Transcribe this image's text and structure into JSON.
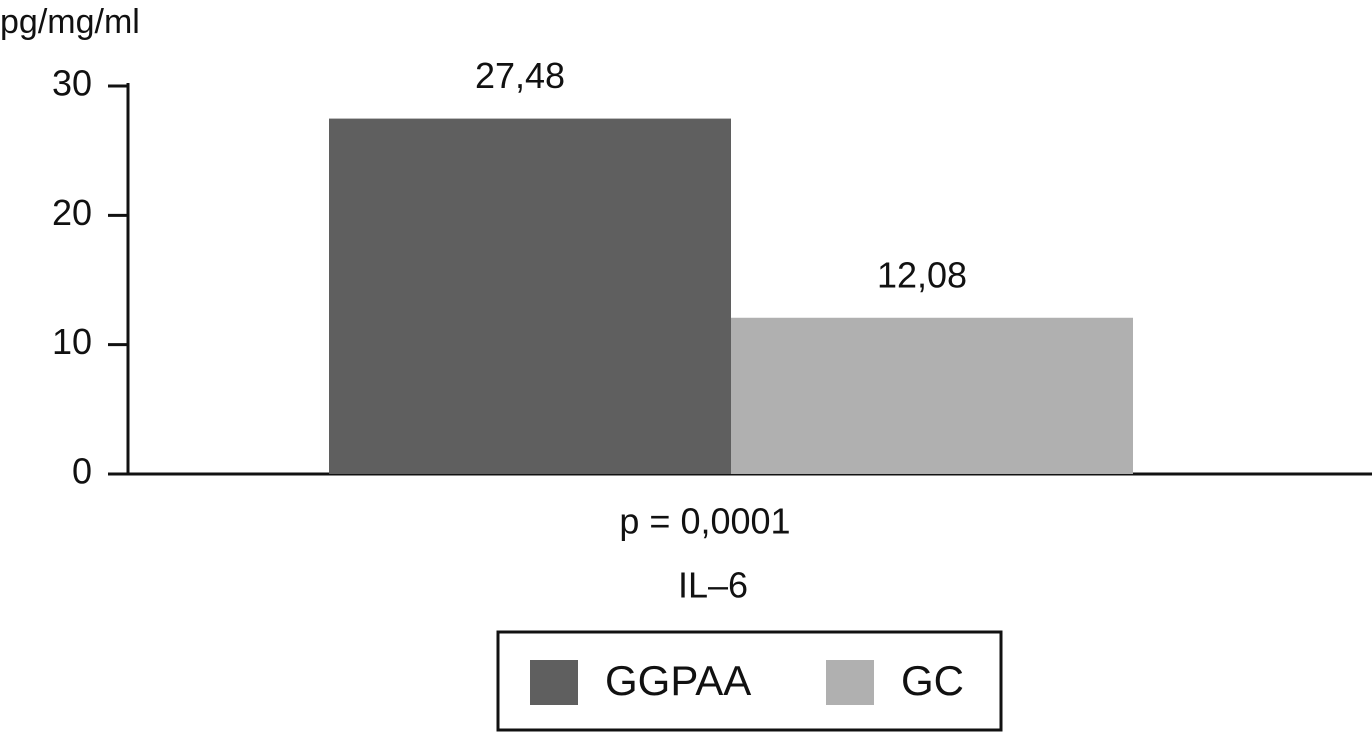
{
  "chart_data": {
    "type": "bar",
    "y_label": "pg/mg/ml",
    "annotation": "p = 0,0001",
    "categories": [
      "IL–6"
    ],
    "series": [
      {
        "name": "GGPAA",
        "color": "#5f5f5f",
        "values": [
          27.48
        ],
        "value_labels": [
          "27,48"
        ]
      },
      {
        "name": "GC",
        "color": "#b0b0b0",
        "values": [
          12.08
        ],
        "value_labels": [
          "12,08"
        ]
      }
    ],
    "ylim": [
      0,
      30
    ],
    "yticks": [
      0,
      10,
      20,
      30
    ],
    "grid": false,
    "legend": "bottom"
  }
}
